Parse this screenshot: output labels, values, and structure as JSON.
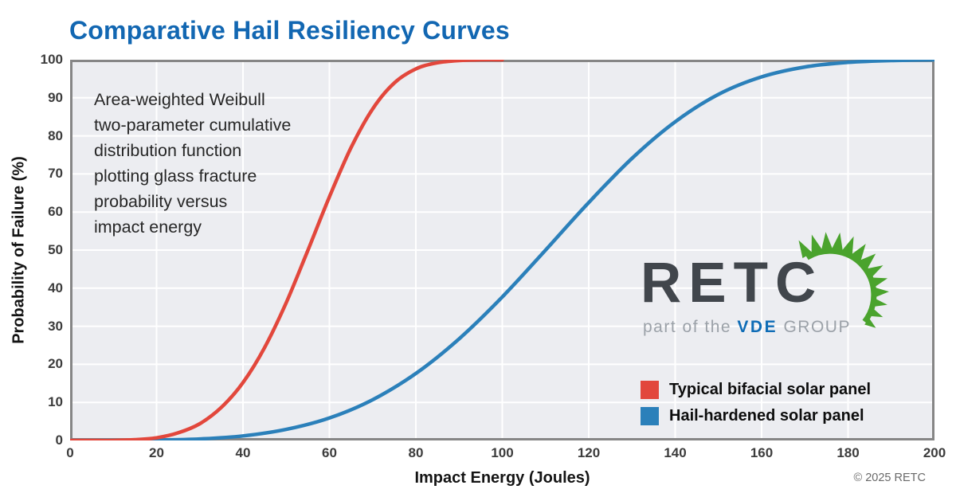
{
  "title": "Comparative Hail Resiliency Curves",
  "annotation": {
    "lines": [
      "Area-weighted Weibull",
      "two-parameter cumulative",
      "distribution function",
      "plotting glass fracture",
      "probability versus",
      "impact energy"
    ]
  },
  "axes": {
    "x": {
      "label": "Impact Energy (Joules)"
    },
    "y": {
      "label": "Probability of Failure (%)"
    }
  },
  "legend": [
    {
      "label": "Typical bifacial solar panel",
      "color": "#e2473c"
    },
    {
      "label": "Hail-hardened solar panel",
      "color": "#2b80ba"
    }
  ],
  "logo": {
    "text": "RETC",
    "tagline_prefix": "part of the",
    "tagline_brand": "VDE",
    "tagline_suffix": "GROUP",
    "sun_color": "#4aa32d"
  },
  "copyright": "© 2025 RETC",
  "colors": {
    "title_blue": "#1267b2",
    "curve_red": "#e2473c",
    "curve_blue": "#2b80ba",
    "plot_background": "#ecedf1",
    "gridline": "#ffffff",
    "plot_border": "#868686",
    "vde_blue": "#0e6cb6"
  },
  "chart_data": {
    "type": "line",
    "title": "Comparative Hail Resiliency Curves",
    "xlabel": "Impact Energy (Joules)",
    "ylabel": "Probability of Failure (%)",
    "xlim": [
      0,
      200
    ],
    "ylim": [
      0,
      100
    ],
    "x_ticks": [
      0,
      20,
      40,
      60,
      80,
      100,
      120,
      140,
      160,
      180,
      200
    ],
    "y_ticks": [
      0,
      10,
      20,
      30,
      40,
      50,
      60,
      70,
      80,
      90,
      100
    ],
    "grid": true,
    "legend_position": "inside bottom-right",
    "annotation": "Area-weighted Weibull two-parameter cumulative distribution function plotting glass fracture probability versus impact energy",
    "series": [
      {
        "name": "Typical bifacial solar panel",
        "color": "#e2473c",
        "x": [
          0,
          5,
          10,
          15,
          20,
          25,
          30,
          35,
          40,
          45,
          50,
          55,
          60,
          65,
          70,
          75,
          80,
          85,
          90,
          95,
          100
        ],
        "y": [
          0,
          0,
          0,
          0.2,
          0.7,
          2.0,
          4.4,
          8.7,
          15.2,
          24.4,
          36.2,
          49.9,
          64.0,
          76.9,
          87.1,
          93.9,
          97.6,
          99.2,
          99.8,
          100,
          100
        ]
      },
      {
        "name": "Hail-hardened solar panel",
        "color": "#2b80ba",
        "x": [
          0,
          10,
          20,
          30,
          40,
          50,
          60,
          70,
          80,
          90,
          100,
          110,
          120,
          130,
          140,
          150,
          160,
          170,
          180,
          190,
          200
        ],
        "y": [
          0,
          0,
          0.1,
          0.4,
          1.2,
          2.9,
          5.9,
          10.7,
          17.6,
          26.7,
          37.7,
          50.0,
          62.5,
          74.1,
          83.7,
          90.9,
          95.5,
          98.1,
          99.3,
          99.8,
          100
        ]
      }
    ]
  }
}
